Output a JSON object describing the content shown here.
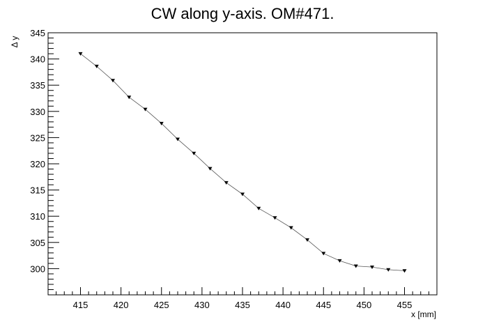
{
  "chart_data": {
    "type": "line",
    "title": "CW along y-axis. OM#471.",
    "xlabel": "x [mm]",
    "ylabel": "Δ y",
    "xlim": [
      411,
      459
    ],
    "ylim": [
      295,
      345
    ],
    "x_ticks": [
      415,
      420,
      425,
      430,
      435,
      440,
      445,
      450,
      455
    ],
    "y_ticks": [
      300,
      305,
      310,
      315,
      320,
      325,
      330,
      335,
      340,
      345
    ],
    "grid": false,
    "marker": "inverted-triangle",
    "series": [
      {
        "x": [
          415,
          417,
          419,
          421,
          423,
          425,
          427,
          429,
          431,
          433,
          435,
          437,
          439,
          441,
          443,
          445,
          447,
          449,
          451,
          453,
          455
        ],
        "y": [
          341.0,
          338.6,
          335.9,
          332.7,
          330.4,
          327.7,
          324.7,
          322.0,
          319.1,
          316.4,
          314.2,
          311.5,
          309.7,
          307.8,
          305.5,
          302.9,
          301.5,
          300.5,
          300.3,
          299.8,
          299.6
        ]
      }
    ]
  }
}
